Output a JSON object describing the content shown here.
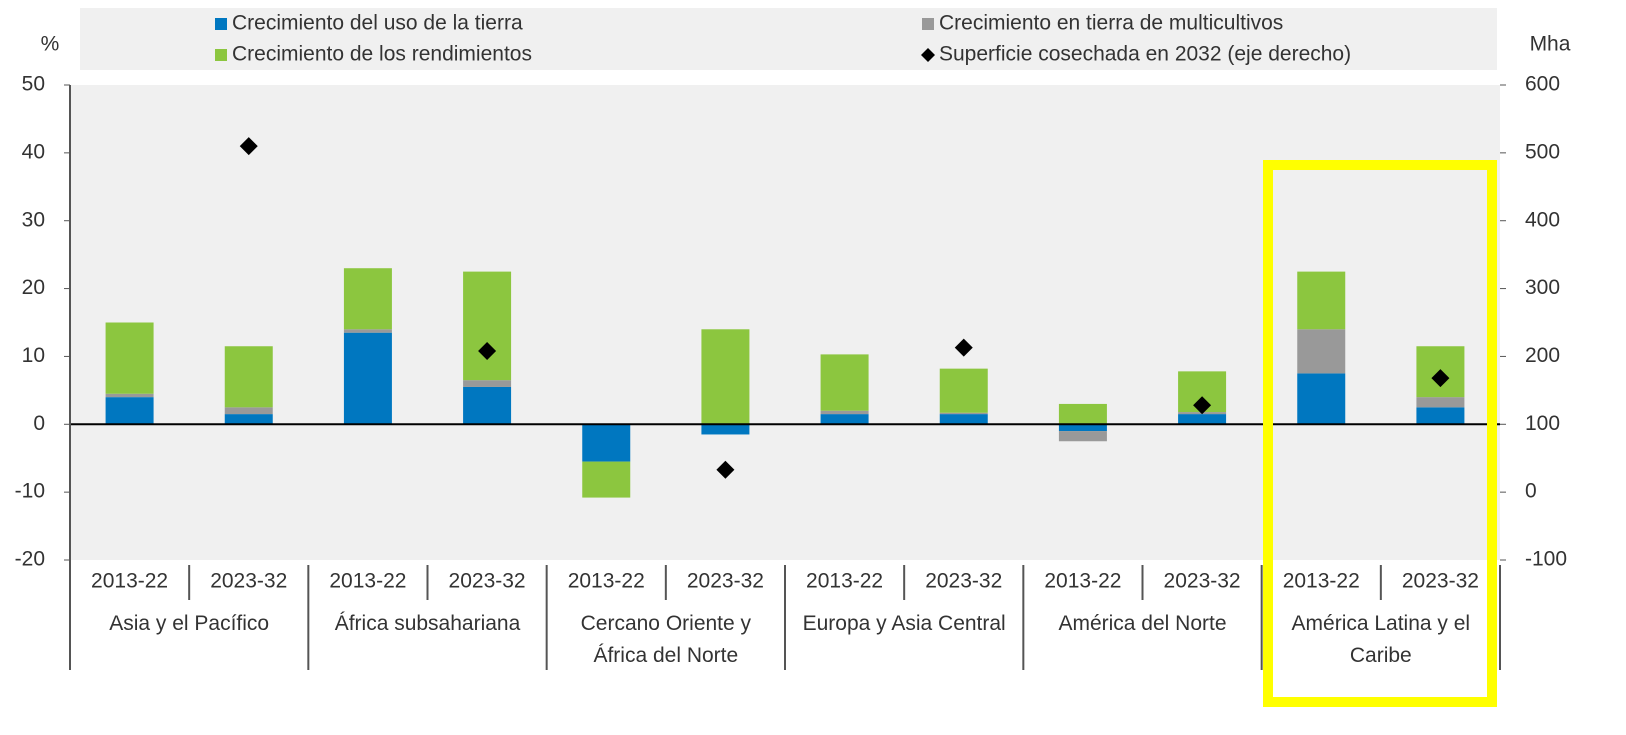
{
  "chart_data": {
    "type": "bar",
    "stacked": true,
    "y_label": "%",
    "y2_label": "Mha",
    "categories": [
      "2013-22",
      "2023-32",
      "2013-22",
      "2023-32",
      "2013-22",
      "2023-32",
      "2013-22",
      "2023-32",
      "2013-22",
      "2023-32",
      "2013-22",
      "2023-32"
    ],
    "groups": [
      "Asia y el Pacífico",
      "África subsahariana",
      "Cercano Oriente y África del Norte",
      "Europa y Asia Central",
      "América del Norte",
      "América Latina y el Caribe"
    ],
    "series": [
      {
        "name": "Crecimiento del uso de la tierra",
        "color": "#0077c0",
        "values": [
          4,
          1.5,
          13.5,
          5.5,
          -5.5,
          -1.5,
          1.5,
          1.5,
          -1,
          1.5,
          7.5,
          2.5
        ]
      },
      {
        "name": "Crecimiento en tierra de multicultivos",
        "color": "#999999",
        "values": [
          0.5,
          1,
          0.5,
          1,
          0,
          0,
          0.5,
          0.2,
          -1.5,
          0.3,
          6.5,
          1.5
        ]
      },
      {
        "name": "Crecimiento de los rendimientos",
        "color": "#8cc63f",
        "values": [
          10.5,
          9,
          9,
          16,
          -5.3,
          14,
          8.3,
          6.5,
          3,
          6,
          8.5,
          7.5
        ]
      },
      {
        "name": "Superficie cosechada en 2032 (eje derecho)",
        "color": "#000000",
        "marker": "diamond",
        "axis": "y2",
        "values": [
          null,
          510,
          null,
          208,
          null,
          33,
          null,
          213,
          null,
          128,
          null,
          168
        ]
      }
    ],
    "ylim": [
      -20,
      50
    ],
    "yticks": [
      -20,
      -10,
      0,
      10,
      20,
      30,
      40,
      50
    ],
    "y2lim": [
      -100,
      600
    ],
    "y2ticks": [
      -100,
      0,
      100,
      200,
      300,
      400,
      500,
      600
    ]
  }
}
